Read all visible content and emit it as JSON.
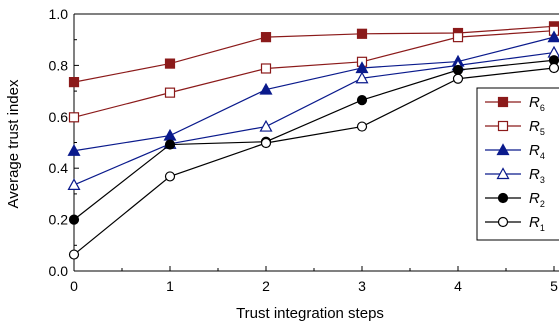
{
  "chart_data": {
    "type": "line",
    "xlabel": "Trust integration steps",
    "ylabel": "Average trust index",
    "x": [
      0,
      1,
      2,
      3,
      4,
      5
    ],
    "x_ticks": [
      "0",
      "1",
      "2",
      "3",
      "4",
      "5"
    ],
    "y_ticks": [
      "0.0",
      "0.2",
      "0.4",
      "0.6",
      "0.8",
      "1.0"
    ],
    "xlim": [
      0,
      5
    ],
    "ylim": [
      0,
      1
    ],
    "grid": false,
    "legend_position": "right",
    "series": [
      {
        "name": "R",
        "subscript": "6",
        "color": "#8b1a1a",
        "marker": "square",
        "filled": true,
        "values": [
          0.735,
          0.807,
          0.91,
          0.923,
          0.926,
          0.952
        ]
      },
      {
        "name": "R",
        "subscript": "5",
        "color": "#8b1a1a",
        "marker": "square",
        "filled": false,
        "values": [
          0.598,
          0.694,
          0.788,
          0.814,
          0.91,
          0.935
        ]
      },
      {
        "name": "R",
        "subscript": "4",
        "color": "#0a1a8c",
        "marker": "triangle",
        "filled": true,
        "values": [
          0.468,
          0.527,
          0.706,
          0.79,
          0.815,
          0.91
        ]
      },
      {
        "name": "R",
        "subscript": "3",
        "color": "#0a1a8c",
        "marker": "triangle",
        "filled": false,
        "values": [
          0.335,
          0.495,
          0.562,
          0.75,
          0.8,
          0.85
        ]
      },
      {
        "name": "R",
        "subscript": "2",
        "color": "#000000",
        "marker": "circle",
        "filled": true,
        "values": [
          0.2,
          0.492,
          0.503,
          0.665,
          0.782,
          0.82
        ]
      },
      {
        "name": "R",
        "subscript": "1",
        "color": "#000000",
        "marker": "circle",
        "filled": false,
        "values": [
          0.064,
          0.368,
          0.498,
          0.562,
          0.748,
          0.79
        ]
      }
    ]
  }
}
